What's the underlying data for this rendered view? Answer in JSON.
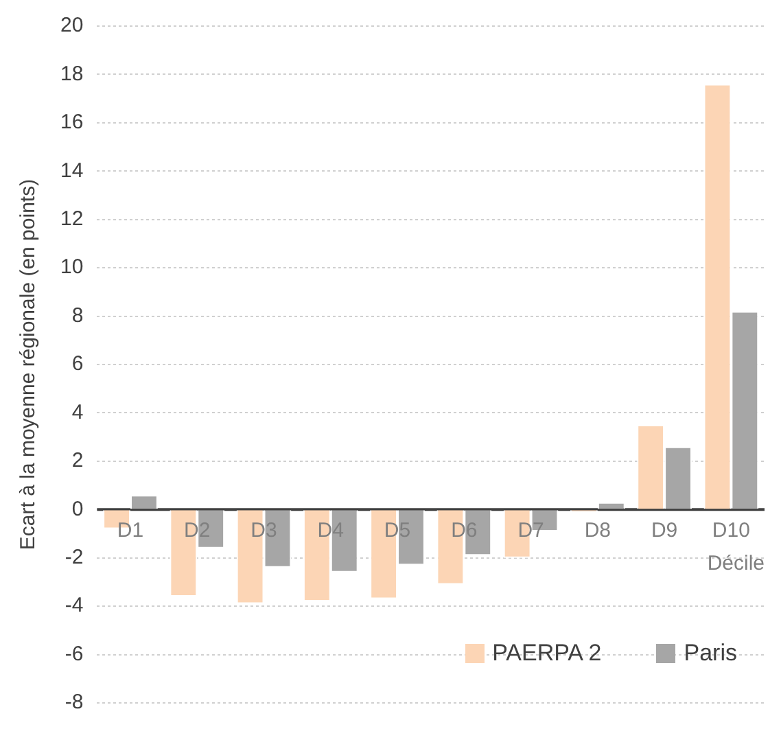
{
  "chart_data": {
    "type": "bar",
    "ylabel": "Ecart à la moyenne régionale (en points)",
    "xlabel": "Décile",
    "categories": [
      "D1",
      "D2",
      "D3",
      "D4",
      "D5",
      "D6",
      "D7",
      "D8",
      "D9",
      "D10"
    ],
    "series": [
      {
        "name": "PAERPA 2",
        "color": "#fcd5b5",
        "values": [
          -0.8,
          -3.6,
          -3.9,
          -3.8,
          -3.7,
          -3.1,
          -2.0,
          -0.1,
          3.5,
          17.6
        ]
      },
      {
        "name": "Paris",
        "color": "#a6a6a6",
        "values": [
          0.6,
          -1.6,
          -2.4,
          -2.6,
          -2.3,
          -1.9,
          -0.9,
          0.3,
          2.6,
          8.2
        ]
      }
    ],
    "ylim": [
      -8,
      20
    ],
    "yticks": [
      -8,
      -6,
      -4,
      -2,
      0,
      2,
      4,
      6,
      8,
      10,
      12,
      14,
      16,
      18,
      20
    ],
    "grid": "y",
    "legend": "bottom right"
  }
}
